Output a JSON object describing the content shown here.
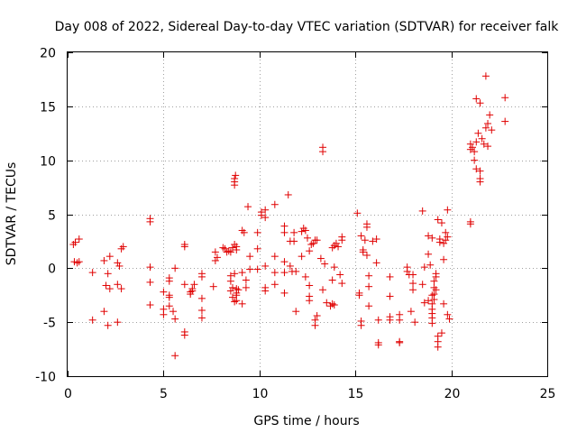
{
  "chart_data": {
    "type": "scatter",
    "title": "Day 008 of 2022, Sidereal Day-to-day VTEC variation (SDTVAR) for receiver falk",
    "xlabel": "GPS time / hours",
    "ylabel": "SDTVAR / TECUs",
    "xlim": [
      0,
      25
    ],
    "ylim": [
      -10,
      20
    ],
    "xticks": [
      0,
      5,
      10,
      15,
      20,
      25
    ],
    "yticks": [
      -10,
      -5,
      0,
      5,
      10,
      15,
      20
    ],
    "xtick_labels": [
      "0",
      "5",
      "10",
      "15",
      "20",
      "25"
    ],
    "ytick_labels": [
      "-10",
      "-5",
      "0",
      "5",
      "10",
      "15",
      "20"
    ],
    "grid": true,
    "marker": "+",
    "color": "#e00000",
    "series": [
      {
        "name": "SDTVAR",
        "points": [
          [
            0.3,
            2.2
          ],
          [
            0.4,
            2.4
          ],
          [
            0.6,
            2.7
          ],
          [
            0.35,
            0.6
          ],
          [
            0.5,
            0.5
          ],
          [
            0.6,
            0.6
          ],
          [
            1.3,
            -0.4
          ],
          [
            1.3,
            -4.8
          ],
          [
            1.9,
            0.7
          ],
          [
            2.0,
            -1.6
          ],
          [
            1.9,
            -4.0
          ],
          [
            2.2,
            1.1
          ],
          [
            2.1,
            -0.5
          ],
          [
            2.2,
            -1.9
          ],
          [
            2.1,
            -5.3
          ],
          [
            2.6,
            0.5
          ],
          [
            2.6,
            -1.5
          ],
          [
            2.6,
            -5.0
          ],
          [
            2.8,
            1.8
          ],
          [
            2.9,
            2.0
          ],
          [
            2.8,
            -1.9
          ],
          [
            2.7,
            0.2
          ],
          [
            4.3,
            4.3
          ],
          [
            4.3,
            4.6
          ],
          [
            4.3,
            0.1
          ],
          [
            4.3,
            -1.3
          ],
          [
            4.3,
            -3.4
          ],
          [
            5.0,
            -2.2
          ],
          [
            5.0,
            -3.8
          ],
          [
            5.0,
            -4.3
          ],
          [
            5.3,
            -0.9
          ],
          [
            5.3,
            -1.2
          ],
          [
            5.3,
            -2.5
          ],
          [
            5.3,
            -2.7
          ],
          [
            5.3,
            -3.5
          ],
          [
            5.6,
            0.0
          ],
          [
            5.5,
            -4.0
          ],
          [
            5.6,
            -4.7
          ],
          [
            5.6,
            -8.1
          ],
          [
            6.1,
            2.0
          ],
          [
            6.1,
            2.2
          ],
          [
            6.1,
            -1.5
          ],
          [
            6.1,
            -5.9
          ],
          [
            6.1,
            -6.2
          ],
          [
            6.4,
            -2.4
          ],
          [
            6.5,
            -1.9
          ],
          [
            6.5,
            -2.1
          ],
          [
            6.6,
            -1.5
          ],
          [
            6.4,
            -2.2
          ],
          [
            7.0,
            -0.5
          ],
          [
            7.0,
            -0.8
          ],
          [
            7.0,
            -2.8
          ],
          [
            7.0,
            -3.9
          ],
          [
            7.0,
            -4.6
          ],
          [
            7.6,
            -1.7
          ],
          [
            7.7,
            0.7
          ],
          [
            7.7,
            1.5
          ],
          [
            7.8,
            1.0
          ],
          [
            8.1,
            1.9
          ],
          [
            8.2,
            1.8
          ],
          [
            8.3,
            1.5
          ],
          [
            8.4,
            1.6
          ],
          [
            8.5,
            1.5
          ],
          [
            8.6,
            1.9
          ],
          [
            8.5,
            -0.7
          ],
          [
            8.5,
            -1.2
          ],
          [
            8.5,
            -2.1
          ],
          [
            8.6,
            -1.8
          ],
          [
            8.6,
            -2.7
          ],
          [
            8.7,
            -3.1
          ],
          [
            8.7,
            -0.5
          ],
          [
            8.8,
            -1.9
          ],
          [
            8.8,
            -2.3
          ],
          [
            8.8,
            -2.5
          ],
          [
            8.8,
            -3.0
          ],
          [
            8.9,
            -2.0
          ],
          [
            8.7,
            8.3
          ],
          [
            8.7,
            8.0
          ],
          [
            8.7,
            7.7
          ],
          [
            8.75,
            8.6
          ],
          [
            8.8,
            1.7
          ],
          [
            8.8,
            2.0
          ],
          [
            8.7,
            2.2
          ],
          [
            9.1,
            3.5
          ],
          [
            9.2,
            3.3
          ],
          [
            9.1,
            -0.4
          ],
          [
            9.1,
            -3.3
          ],
          [
            9.4,
            5.7
          ],
          [
            9.5,
            -0.1
          ],
          [
            9.5,
            1.1
          ],
          [
            9.3,
            -1.1
          ],
          [
            9.3,
            -1.8
          ],
          [
            9.9,
            3.3
          ],
          [
            9.9,
            1.8
          ],
          [
            9.9,
            -0.1
          ],
          [
            10.1,
            4.9
          ],
          [
            10.1,
            5.2
          ],
          [
            10.3,
            5.4
          ],
          [
            10.3,
            4.7
          ],
          [
            10.3,
            0.2
          ],
          [
            10.3,
            -1.8
          ],
          [
            10.3,
            -2.1
          ],
          [
            10.8,
            5.9
          ],
          [
            10.8,
            1.1
          ],
          [
            10.8,
            -0.4
          ],
          [
            10.8,
            -1.5
          ],
          [
            11.3,
            3.9
          ],
          [
            11.3,
            3.3
          ],
          [
            11.3,
            0.6
          ],
          [
            11.3,
            -0.4
          ],
          [
            11.3,
            -2.3
          ],
          [
            11.5,
            6.8
          ],
          [
            11.6,
            2.5
          ],
          [
            11.6,
            0.2
          ],
          [
            11.7,
            -0.3
          ],
          [
            11.8,
            3.3
          ],
          [
            11.8,
            2.5
          ],
          [
            11.9,
            -0.3
          ],
          [
            11.9,
            -4.0
          ],
          [
            12.2,
            3.4
          ],
          [
            12.2,
            1.1
          ],
          [
            12.3,
            3.7
          ],
          [
            12.4,
            3.5
          ],
          [
            12.4,
            -0.8
          ],
          [
            12.5,
            2.8
          ],
          [
            12.6,
            1.6
          ],
          [
            12.6,
            -1.6
          ],
          [
            12.6,
            -2.6
          ],
          [
            12.6,
            -3.0
          ],
          [
            12.7,
            2.2
          ],
          [
            12.8,
            2.3
          ],
          [
            12.9,
            2.6
          ],
          [
            12.9,
            -4.8
          ],
          [
            12.9,
            -5.3
          ],
          [
            13.0,
            2.6
          ],
          [
            13.0,
            -4.4
          ],
          [
            13.2,
            0.9
          ],
          [
            13.3,
            10.8
          ],
          [
            13.3,
            11.2
          ],
          [
            13.3,
            -2.0
          ],
          [
            13.4,
            0.4
          ],
          [
            13.5,
            -3.2
          ],
          [
            13.7,
            -3.5
          ],
          [
            13.8,
            -3.3
          ],
          [
            13.8,
            -1.1
          ],
          [
            13.8,
            1.9
          ],
          [
            13.9,
            2.1
          ],
          [
            13.9,
            0.1
          ],
          [
            13.9,
            -3.4
          ],
          [
            14.0,
            2.3
          ],
          [
            14.1,
            2.0
          ],
          [
            14.2,
            -0.6
          ],
          [
            14.3,
            2.6
          ],
          [
            14.3,
            -1.4
          ],
          [
            14.3,
            2.9
          ],
          [
            15.1,
            5.1
          ],
          [
            15.2,
            -2.3
          ],
          [
            15.2,
            -2.5
          ],
          [
            15.3,
            -4.9
          ],
          [
            15.3,
            -5.3
          ],
          [
            15.3,
            3.0
          ],
          [
            15.4,
            1.5
          ],
          [
            15.4,
            1.7
          ],
          [
            15.5,
            2.6
          ],
          [
            15.6,
            4.1
          ],
          [
            15.6,
            3.8
          ],
          [
            15.6,
            1.2
          ],
          [
            15.7,
            -0.7
          ],
          [
            15.7,
            -1.7
          ],
          [
            15.7,
            -3.5
          ],
          [
            15.9,
            2.5
          ],
          [
            16.1,
            0.5
          ],
          [
            16.2,
            -4.8
          ],
          [
            16.2,
            -6.9
          ],
          [
            16.2,
            -7.1
          ],
          [
            16.1,
            2.7
          ],
          [
            16.8,
            -0.8
          ],
          [
            16.8,
            -2.6
          ],
          [
            16.8,
            -4.5
          ],
          [
            16.8,
            -4.8
          ],
          [
            17.3,
            -4.8
          ],
          [
            17.3,
            -6.8
          ],
          [
            17.3,
            -6.9
          ],
          [
            17.3,
            -4.3
          ],
          [
            17.7,
            0.1
          ],
          [
            17.7,
            -0.3
          ],
          [
            17.8,
            -0.6
          ],
          [
            17.9,
            -4.0
          ],
          [
            18.0,
            -2.0
          ],
          [
            18.0,
            -1.4
          ],
          [
            18.0,
            -0.6
          ],
          [
            18.1,
            -5.0
          ],
          [
            18.5,
            5.3
          ],
          [
            18.5,
            -1.5
          ],
          [
            18.6,
            -3.2
          ],
          [
            18.6,
            0.1
          ],
          [
            18.8,
            3.0
          ],
          [
            18.8,
            1.3
          ],
          [
            18.8,
            -3.0
          ],
          [
            18.9,
            0.3
          ],
          [
            19.0,
            2.8
          ],
          [
            19.0,
            -2.5
          ],
          [
            19.0,
            -3.3
          ],
          [
            19.0,
            -3.8
          ],
          [
            19.0,
            -4.2
          ],
          [
            19.0,
            -4.6
          ],
          [
            19.0,
            -5.1
          ],
          [
            19.1,
            -1.2
          ],
          [
            19.1,
            -1.8
          ],
          [
            19.1,
            -2.4
          ],
          [
            19.1,
            -2.9
          ],
          [
            19.2,
            -0.5
          ],
          [
            19.2,
            -0.8
          ],
          [
            19.2,
            -2.0
          ],
          [
            19.3,
            4.5
          ],
          [
            19.3,
            -6.3
          ],
          [
            19.3,
            -6.8
          ],
          [
            19.3,
            -7.3
          ],
          [
            19.4,
            2.4
          ],
          [
            19.4,
            2.7
          ],
          [
            19.5,
            -6.0
          ],
          [
            19.5,
            4.2
          ],
          [
            19.6,
            2.3
          ],
          [
            19.6,
            0.8
          ],
          [
            19.7,
            2.6
          ],
          [
            19.7,
            3.3
          ],
          [
            19.8,
            5.4
          ],
          [
            19.8,
            2.9
          ],
          [
            19.8,
            -4.3
          ],
          [
            19.9,
            -4.7
          ],
          [
            19.6,
            -3.3
          ],
          [
            21.0,
            11.0
          ],
          [
            21.0,
            11.5
          ],
          [
            21.1,
            11.2
          ],
          [
            21.2,
            10.8
          ],
          [
            21.3,
            11.7
          ],
          [
            21.2,
            10.0
          ],
          [
            21.3,
            9.2
          ],
          [
            21.5,
            9.0
          ],
          [
            21.5,
            8.3
          ],
          [
            21.5,
            8.0
          ],
          [
            21.3,
            15.7
          ],
          [
            21.5,
            15.3
          ],
          [
            21.4,
            12.5
          ],
          [
            21.6,
            12.0
          ],
          [
            21.7,
            11.5
          ],
          [
            21.8,
            17.8
          ],
          [
            21.8,
            13.0
          ],
          [
            21.9,
            13.4
          ],
          [
            22.0,
            14.2
          ],
          [
            22.1,
            12.8
          ],
          [
            21.9,
            11.3
          ],
          [
            21.0,
            4.3
          ],
          [
            21.0,
            4.1
          ],
          [
            22.8,
            15.8
          ],
          [
            22.8,
            13.6
          ]
        ]
      }
    ]
  }
}
